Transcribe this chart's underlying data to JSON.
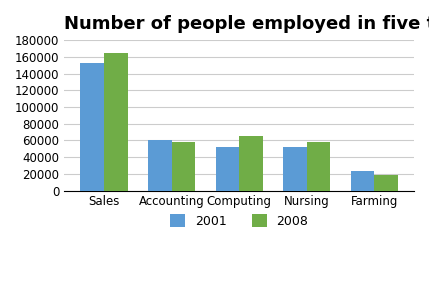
{
  "title": "Number of people employed in five types of work",
  "categories": [
    "Sales",
    "Accounting",
    "Computing",
    "Nursing",
    "Farming"
  ],
  "values_2001": [
    153000,
    61000,
    52000,
    52000,
    23000
  ],
  "values_2008": [
    165000,
    58000,
    65000,
    58000,
    19000
  ],
  "color_2001": "#5b9bd5",
  "color_2008": "#70ad47",
  "ylim": [
    0,
    180000
  ],
  "yticks": [
    0,
    20000,
    40000,
    60000,
    80000,
    100000,
    120000,
    140000,
    160000,
    180000
  ],
  "legend_labels": [
    "2001",
    "2008"
  ],
  "title_fontsize": 13,
  "tick_fontsize": 8.5,
  "legend_fontsize": 9,
  "bar_width": 0.35,
  "background_color": "#ffffff",
  "grid_color": "#cccccc"
}
